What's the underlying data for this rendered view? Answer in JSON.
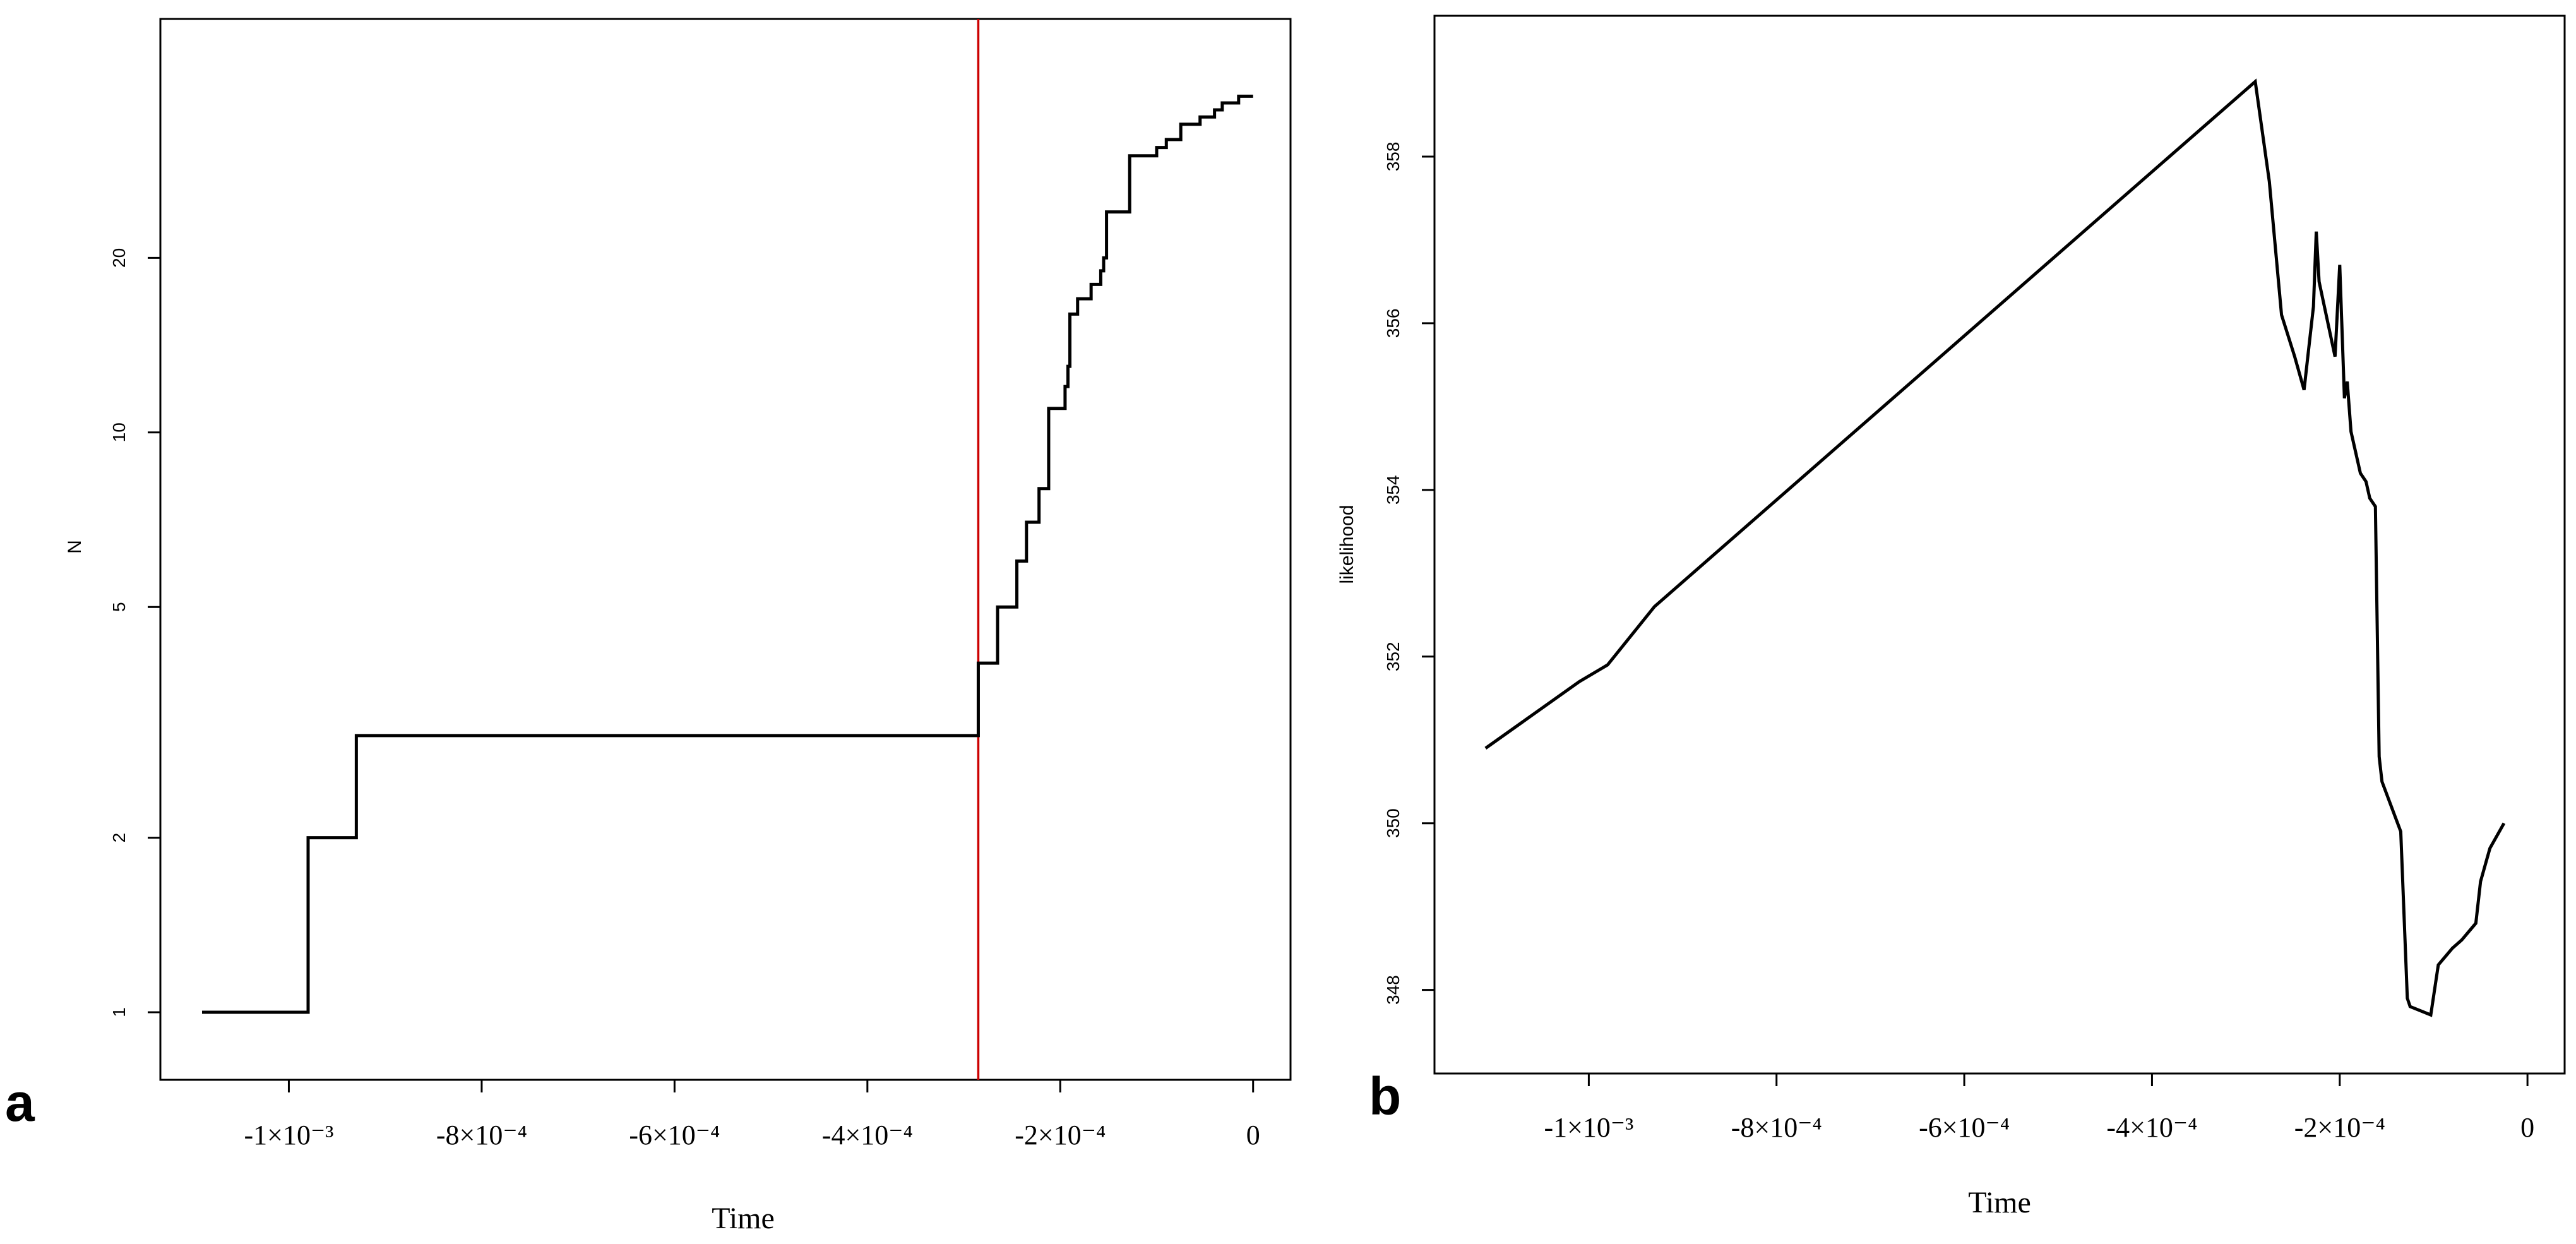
{
  "chart_data": [
    {
      "panel_label": "a",
      "type": "line",
      "step": true,
      "xlabel": "Time",
      "ylabel": "N",
      "y_scale": "log",
      "xlim": [
        -0.00109,
        1e-05
      ],
      "ylim": [
        0.9,
        45
      ],
      "x_ticks": [
        {
          "value": -0.001,
          "label": "-1×10⁻³"
        },
        {
          "value": -0.0008,
          "label": "-8×10⁻⁴"
        },
        {
          "value": -0.0006,
          "label": "-6×10⁻⁴"
        },
        {
          "value": -0.0004,
          "label": "-4×10⁻⁴"
        },
        {
          "value": -0.0002,
          "label": "-2×10⁻⁴"
        },
        {
          "value": 0,
          "label": "0"
        }
      ],
      "y_ticks": [
        {
          "value": 1,
          "label": "1"
        },
        {
          "value": 2,
          "label": "2"
        },
        {
          "value": 5,
          "label": "5"
        },
        {
          "value": 10,
          "label": "10"
        },
        {
          "value": 20,
          "label": "20"
        }
      ],
      "vline": {
        "x": -0.000285,
        "color": "#cc0000"
      },
      "grid": false,
      "legend": "none",
      "series": [
        {
          "x": [
            -0.00109,
            -0.00098,
            -0.00093,
            -0.000285,
            -0.000265,
            -0.000245,
            -0.000235,
            -0.000222,
            -0.000212,
            -0.000195,
            -0.000192,
            -0.00019,
            -0.000182,
            -0.000168,
            -0.000158,
            -0.000155,
            -0.000152,
            -0.000142,
            -0.000128,
            -0.000115,
            -0.0001,
            -9e-05,
            -7.5e-05,
            -7e-05,
            -5.5e-05,
            -4e-05,
            -3.2e-05,
            -2.5e-05,
            -1.5e-05,
            -0.0,
            0.0
          ],
          "y": [
            1,
            2,
            3,
            4,
            5,
            6,
            7,
            8,
            11,
            12,
            13,
            16,
            17,
            18,
            19,
            20,
            24,
            24,
            30,
            30,
            31,
            32,
            34,
            34,
            35,
            36,
            37,
            37,
            38,
            38,
            38
          ]
        }
      ]
    },
    {
      "panel_label": "b",
      "type": "line",
      "step": false,
      "xlabel": "Time",
      "ylabel": "likelihood",
      "y_scale": "linear",
      "xlim": [
        -0.00112,
        1e-05
      ],
      "ylim": [
        347.3,
        359.5
      ],
      "x_ticks": [
        {
          "value": -0.001,
          "label": "-1×10⁻³"
        },
        {
          "value": -0.0008,
          "label": "-8×10⁻⁴"
        },
        {
          "value": -0.0006,
          "label": "-6×10⁻⁴"
        },
        {
          "value": -0.0004,
          "label": "-4×10⁻⁴"
        },
        {
          "value": -0.0002,
          "label": "-2×10⁻⁴"
        },
        {
          "value": 0,
          "label": "0"
        }
      ],
      "y_ticks": [
        {
          "value": 348,
          "label": "348"
        },
        {
          "value": 350,
          "label": "350"
        },
        {
          "value": 352,
          "label": "352"
        },
        {
          "value": 354,
          "label": "354"
        },
        {
          "value": 356,
          "label": "356"
        },
        {
          "value": 358,
          "label": "358"
        }
      ],
      "grid": false,
      "legend": "none",
      "series": [
        {
          "x": [
            -0.00111,
            -0.00106,
            -0.00101,
            -0.00098,
            -0.00093,
            -0.00029,
            -0.000275,
            -0.000262,
            -0.000248,
            -0.000238,
            -0.000228,
            -0.000225,
            -0.000222,
            -0.000205,
            -0.0002,
            -0.000195,
            -0.000192,
            -0.000188,
            -0.000178,
            -0.000172,
            -0.000168,
            -0.000162,
            -0.000158,
            -0.000155,
            -0.000135,
            -0.000128,
            -0.000125,
            -0.000103,
            -9.5e-05,
            -8e-05,
            -7e-05,
            -5.5e-05,
            -5e-05,
            -4e-05,
            -2.5e-05
          ],
          "y": [
            350.9,
            351.3,
            351.7,
            351.9,
            352.6,
            358.9,
            357.7,
            356.1,
            355.6,
            355.2,
            356.2,
            357.1,
            356.5,
            355.6,
            356.7,
            355.1,
            355.3,
            354.7,
            354.2,
            354.1,
            353.9,
            353.8,
            350.8,
            350.5,
            349.9,
            347.9,
            347.8,
            347.7,
            348.3,
            348.5,
            348.6,
            348.8,
            349.3,
            349.7,
            350.0
          ]
        }
      ]
    }
  ]
}
